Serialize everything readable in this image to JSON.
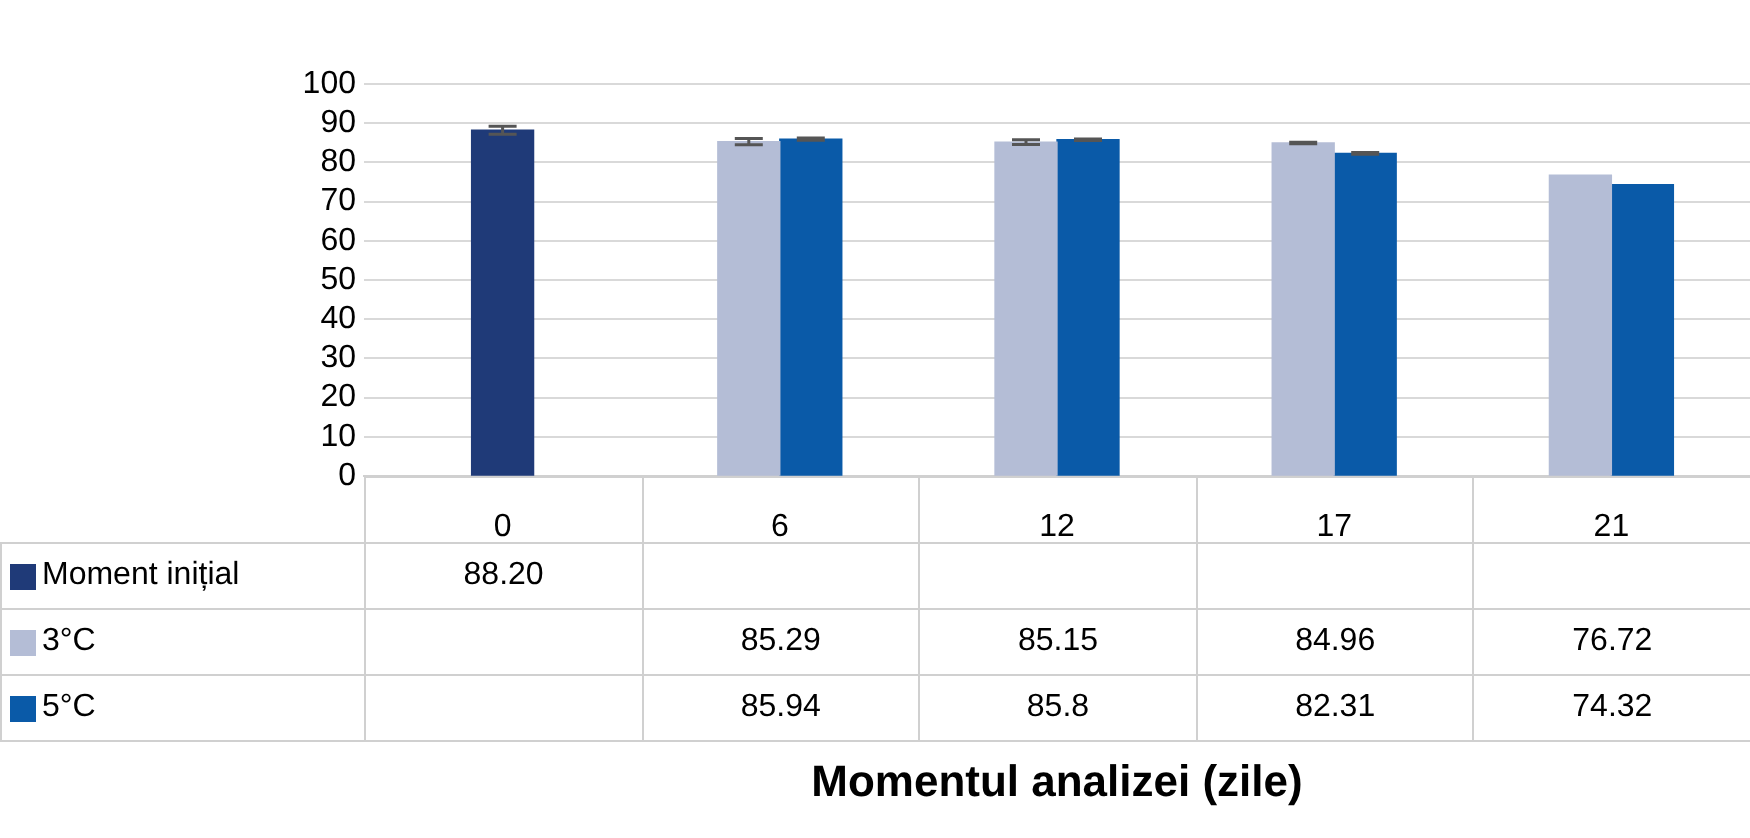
{
  "chart_data": {
    "type": "bar",
    "xlabel": "Momentul analizei (zile)",
    "categories": [
      "0",
      "6",
      "12",
      "17",
      "21"
    ],
    "ylim": [
      0,
      100
    ],
    "yticks": [
      0,
      10,
      20,
      30,
      40,
      50,
      60,
      70,
      80,
      90,
      100
    ],
    "grid": "y",
    "legend": "bottom",
    "series": [
      {
        "name": "Moment inițial",
        "color": "#1f3a78",
        "values": [
          88.2,
          null,
          null,
          null,
          null
        ],
        "errors": [
          1,
          null,
          null,
          null,
          null
        ],
        "value_labels": [
          "88.20",
          null,
          null,
          null,
          null
        ]
      },
      {
        "name": "3°C",
        "color": "#b4bdd6",
        "values": [
          null,
          85.29,
          85.15,
          84.96,
          76.72
        ],
        "errors": [
          null,
          0.8,
          0.6,
          0.2,
          null
        ],
        "value_labels": [
          null,
          "85.29",
          "85.15",
          "84.96",
          "76.72"
        ]
      },
      {
        "name": "5°C",
        "color": "#0a5aa8",
        "values": [
          null,
          85.94,
          85.8,
          82.31,
          74.32
        ],
        "errors": [
          null,
          0.3,
          0.2,
          0.2,
          null
        ],
        "value_labels": [
          null,
          "85.94",
          "85.8",
          "82.31",
          "74.32"
        ]
      }
    ]
  }
}
